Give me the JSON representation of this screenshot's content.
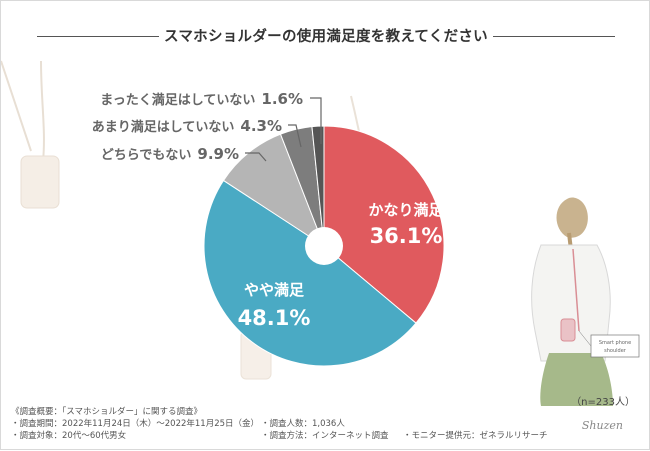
{
  "title": "スマホショルダーの使用満足度を教えてください",
  "sample_size": "（n=233人）",
  "chart_data": {
    "type": "pie",
    "title": "スマホショルダーの使用満足度を教えてください",
    "unit": "%",
    "slices": [
      {
        "label": "かなり満足",
        "value": 36.1,
        "value_text": "36.1%",
        "color": "#e05a5e"
      },
      {
        "label": "やや満足",
        "value": 48.1,
        "value_text": "48.1%",
        "color": "#4aaac4"
      },
      {
        "label": "どちらでもない",
        "value": 9.9,
        "value_text": "9.9%",
        "color": "#b5b5b5"
      },
      {
        "label": "あまり満足はしていない",
        "value": 4.3,
        "value_text": "4.3%",
        "color": "#7d7d7d"
      },
      {
        "label": "まったく満足はしていない",
        "value": 1.6,
        "value_text": "1.6%",
        "color": "#555555"
      }
    ]
  },
  "footer": {
    "heading": "《調査概要：「スマホショルダー」に関する調査》",
    "period": "・調査期間：2022年11月24日（木）～2022年11月25日（金）",
    "respondents": "・調査人数：1,036人",
    "target": "・調査対象：20代～60代男女",
    "method": "・調査方法：インターネット調査",
    "provider": "・モニター提供元：ゼネラルリサーチ"
  },
  "illustration": {
    "phone_tag_line1": "Smart phone",
    "phone_tag_line2": "shoulder",
    "signature": "Shuzen"
  }
}
